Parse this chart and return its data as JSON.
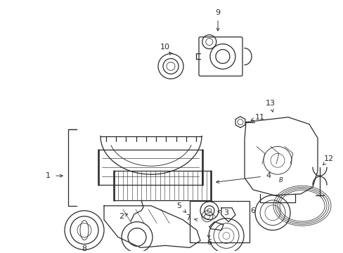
{
  "bg_color": "#ffffff",
  "line_color": "#2a2a2a",
  "fig_width": 4.89,
  "fig_height": 3.6,
  "dpi": 100,
  "xlim": [
    0,
    489
  ],
  "ylim": [
    0,
    360
  ]
}
